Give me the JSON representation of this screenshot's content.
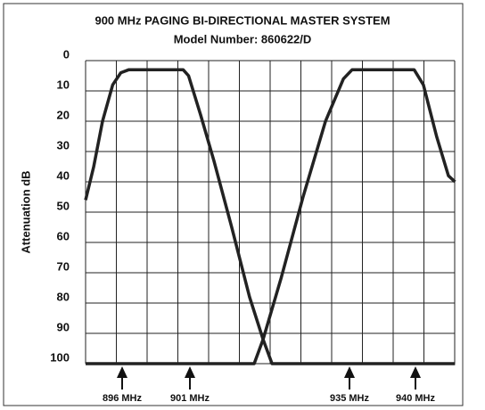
{
  "chart_data": {
    "type": "line",
    "title": "900 MHz PAGING BI-DIRECTIONAL MASTER SYSTEM",
    "subtitle": "Model Number: 860622/D",
    "y_label": "Attenuation dB",
    "ylim": [
      0,
      100
    ],
    "y_inverted": true,
    "yticks": [
      0,
      10,
      20,
      30,
      40,
      50,
      60,
      70,
      80,
      90,
      100
    ],
    "xlim": [
      893.3,
      943.0
    ],
    "grid": true,
    "markers": [
      {
        "value": 896,
        "label": "896 MHz"
      },
      {
        "value": 901,
        "label": "901 MHz"
      },
      {
        "value": 935,
        "label": "935 MHz"
      },
      {
        "value": 940,
        "label": "940 MHz"
      }
    ],
    "series": [
      {
        "color": "#222222",
        "x": [
          893.3,
          893.9,
          894.55,
          895.3,
          895.9,
          896.5,
          900.5,
          900.9,
          903.3,
          906.1,
          909.9,
          913.7,
          916.6,
          918.5,
          943.0
        ],
        "values": [
          46,
          35,
          20,
          8,
          4,
          3,
          3,
          5,
          18,
          33,
          55,
          78,
          92,
          100,
          100
        ]
      },
      {
        "color": "#222222",
        "x": [
          893.3,
          914.7,
          916.6,
          920.4,
          925.1,
          929.9,
          933.7,
          935.2,
          939.9,
          940.6,
          941.6,
          942.5,
          943.0
        ],
        "values": [
          100,
          100,
          92,
          72,
          45,
          20,
          6,
          3,
          3,
          8,
          25,
          38,
          40
        ]
      }
    ]
  }
}
